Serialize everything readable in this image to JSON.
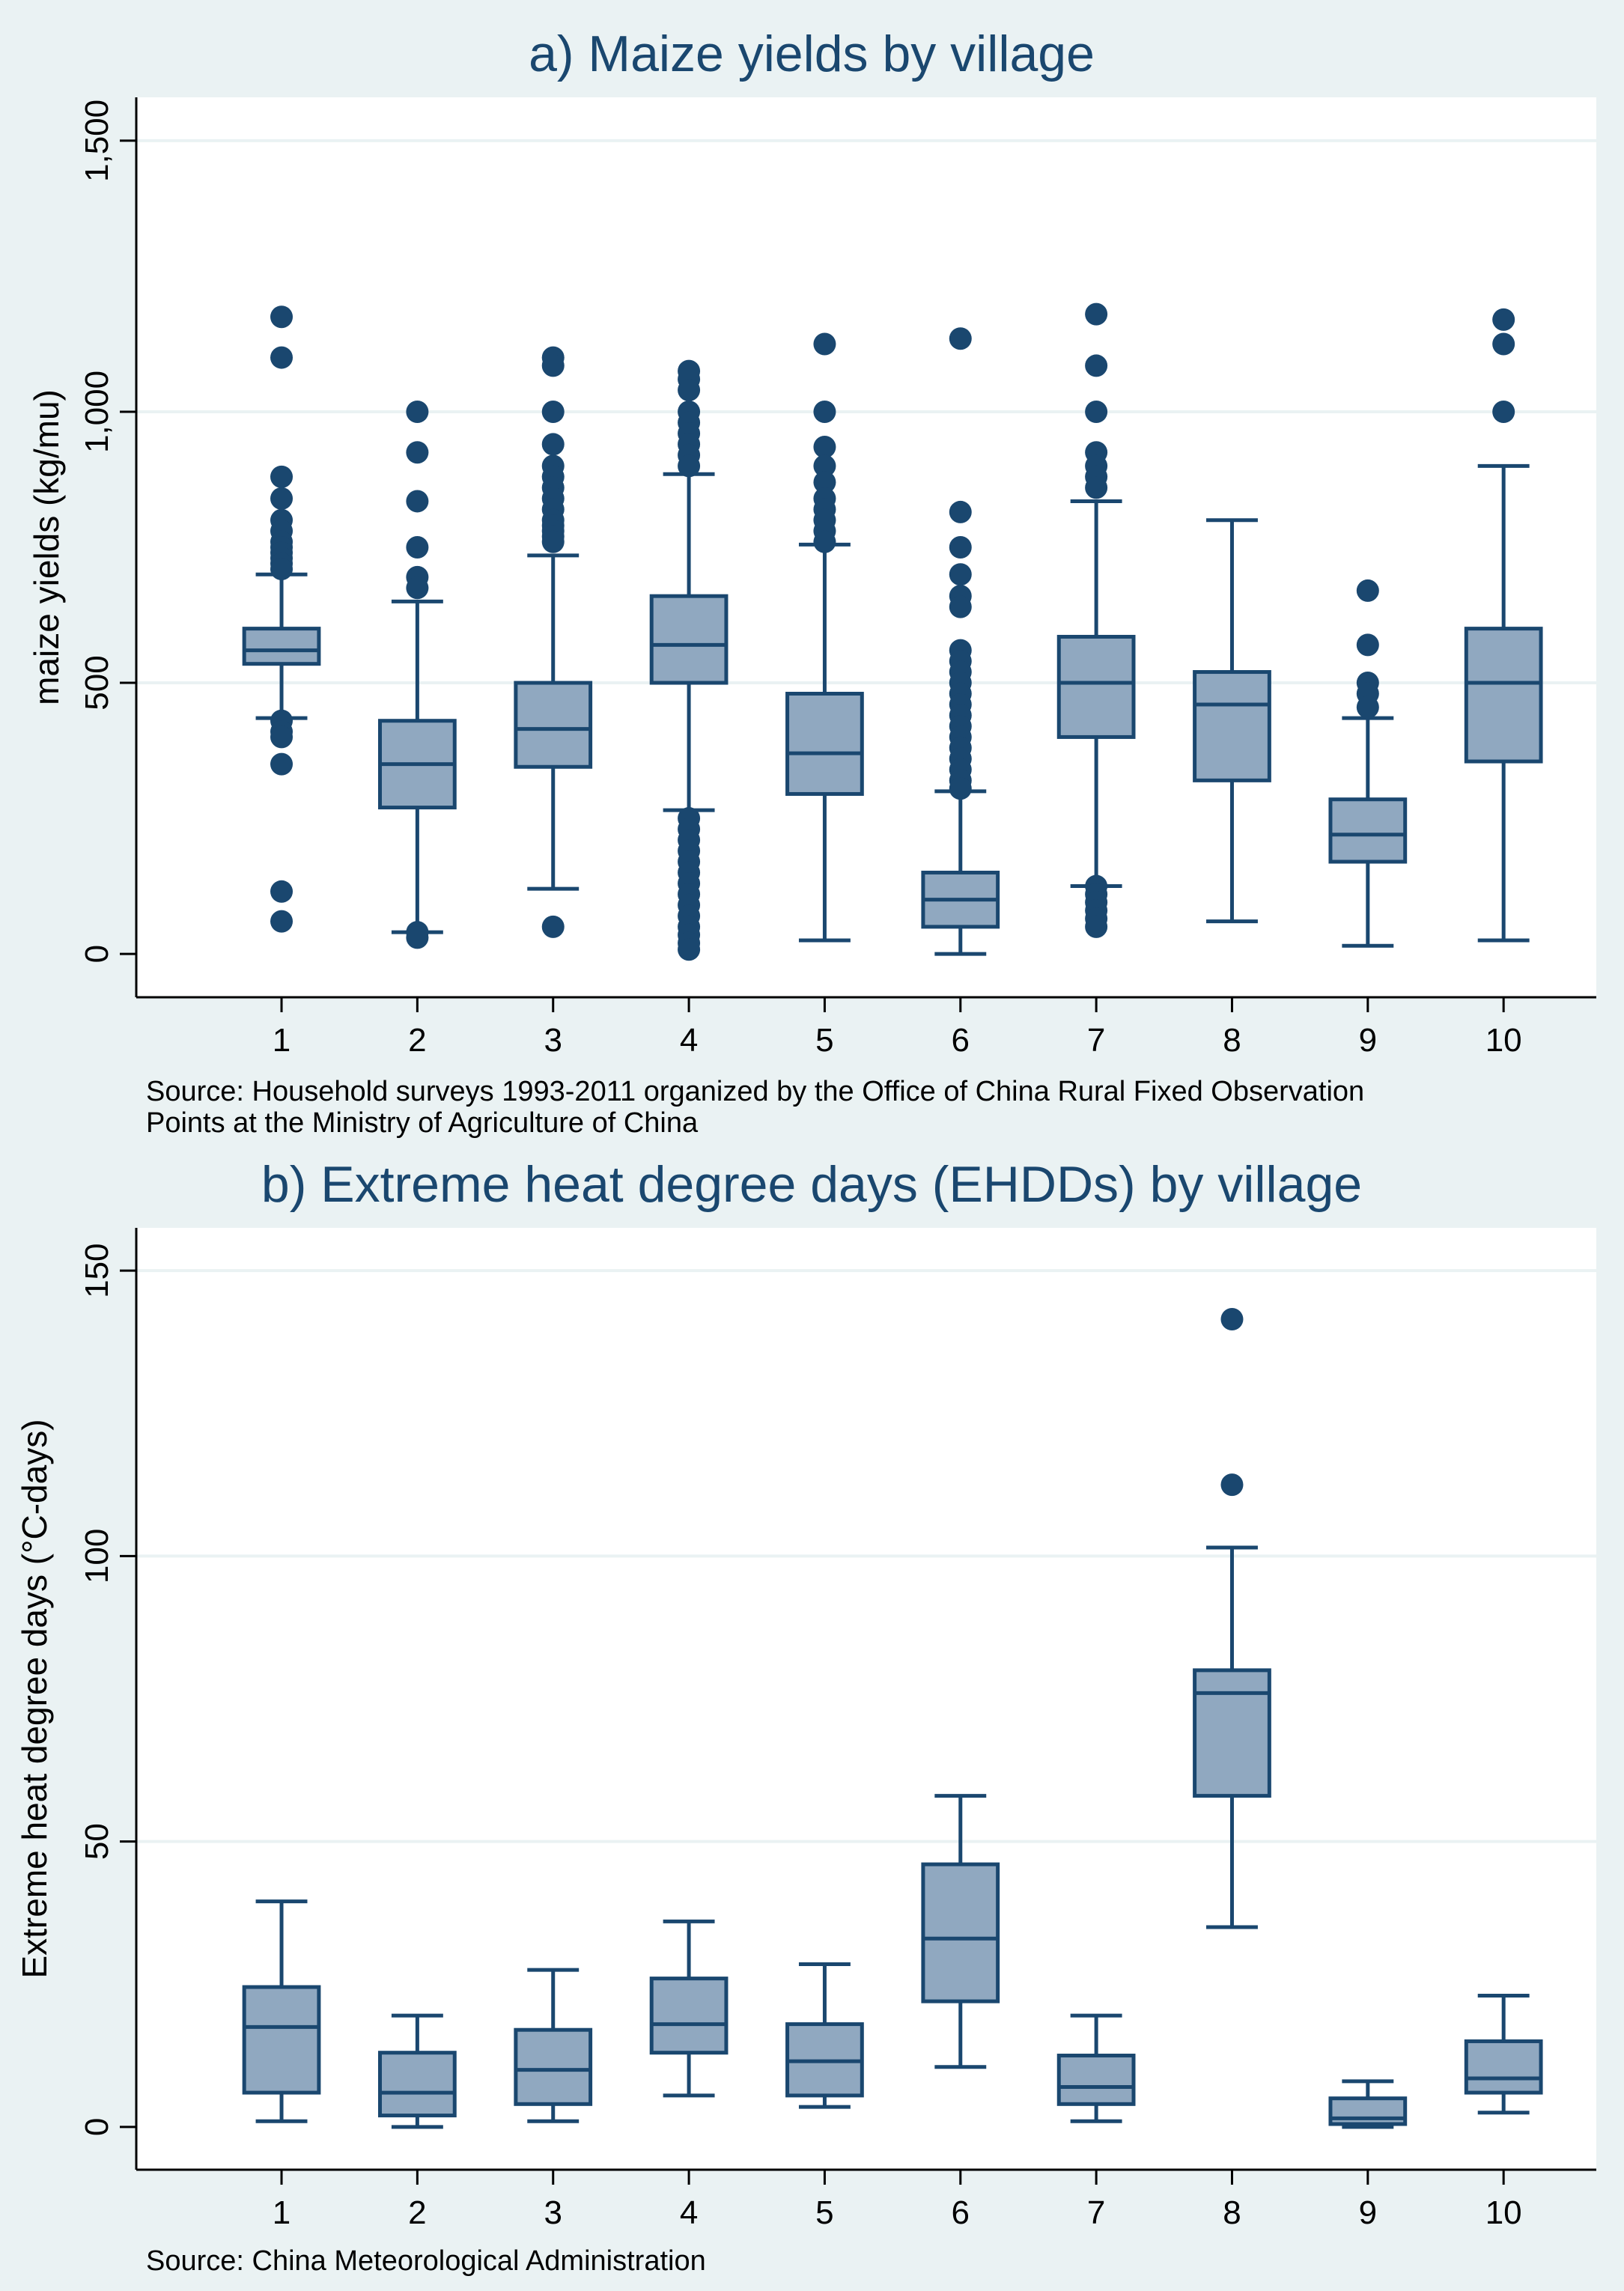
{
  "chart_data": [
    {
      "type": "box",
      "title": "a) Maize yields by village",
      "ylabel": "maize yields (kg/mu)",
      "xlabel": "",
      "ylim": [
        -80,
        1580
      ],
      "yticks": [
        0,
        500,
        1000,
        1500
      ],
      "ytick_labels": [
        "0",
        "500",
        "1,000",
        "1,500"
      ],
      "grid": true,
      "categories": [
        "1",
        "2",
        "3",
        "4",
        "5",
        "6",
        "7",
        "8",
        "9",
        "10"
      ],
      "note": "Source: Household surveys 1993-2011 organized by the Office of China Rural Fixed Observation Points at the Ministry of Agriculture of China",
      "note_lines": [
        "Source: Household surveys 1993-2011 organized by the Office of China Rural Fixed Observation",
        "Points at the Ministry of Agriculture of China"
      ],
      "boxes": [
        {
          "village": "1",
          "whisker_low": 435,
          "q1": 535,
          "median": 560,
          "q3": 600,
          "whisker_high": 700,
          "outliers": [
            1175,
            1100,
            880,
            840,
            800,
            780,
            760,
            750,
            740,
            730,
            720,
            710,
            430,
            410,
            400,
            350,
            115,
            60
          ]
        },
        {
          "village": "2",
          "whisker_low": 40,
          "q1": 270,
          "median": 350,
          "q3": 430,
          "whisker_high": 650,
          "outliers": [
            1000,
            925,
            835,
            750,
            695,
            675,
            40,
            30
          ]
        },
        {
          "village": "3",
          "whisker_low": 120,
          "q1": 345,
          "median": 415,
          "q3": 500,
          "whisker_high": 735,
          "outliers": [
            1100,
            1085,
            1000,
            940,
            900,
            880,
            860,
            840,
            820,
            800,
            790,
            780,
            770,
            760,
            50
          ]
        },
        {
          "village": "4",
          "whisker_low": 265,
          "q1": 500,
          "median": 570,
          "q3": 660,
          "whisker_high": 885,
          "outliers": [
            1075,
            1060,
            1040,
            1000,
            980,
            960,
            940,
            920,
            900,
            250,
            230,
            210,
            190,
            170,
            150,
            130,
            110,
            90,
            70,
            50,
            35,
            20,
            8
          ]
        },
        {
          "village": "5",
          "whisker_low": 25,
          "q1": 295,
          "median": 370,
          "q3": 480,
          "whisker_high": 755,
          "outliers": [
            1125,
            1000,
            935,
            900,
            870,
            840,
            820,
            800,
            780,
            760
          ]
        },
        {
          "village": "6",
          "whisker_low": 0,
          "q1": 50,
          "median": 100,
          "q3": 150,
          "whisker_high": 300,
          "outliers": [
            1135,
            815,
            750,
            700,
            660,
            640,
            560,
            540,
            520,
            500,
            480,
            460,
            440,
            420,
            400,
            380,
            360,
            340,
            320,
            305
          ]
        },
        {
          "village": "7",
          "whisker_low": 125,
          "q1": 400,
          "median": 500,
          "q3": 585,
          "whisker_high": 835,
          "outliers": [
            1180,
            1085,
            1000,
            925,
            900,
            880,
            860,
            125,
            110,
            95,
            80,
            65,
            50
          ]
        },
        {
          "village": "8",
          "whisker_low": 60,
          "q1": 320,
          "median": 460,
          "q3": 520,
          "whisker_high": 800,
          "outliers": []
        },
        {
          "village": "9",
          "whisker_low": 15,
          "q1": 170,
          "median": 220,
          "q3": 285,
          "whisker_high": 435,
          "outliers": [
            670,
            570,
            500,
            480,
            455
          ]
        },
        {
          "village": "10",
          "whisker_low": 25,
          "q1": 355,
          "median": 500,
          "q3": 600,
          "whisker_high": 900,
          "outliers": [
            1170,
            1125,
            1000
          ]
        }
      ]
    },
    {
      "type": "box",
      "title": "b) Extreme heat degree days (EHDDs) by village",
      "ylabel": "Extreme heat degree days (°C-days)",
      "xlabel": "",
      "ylim": [
        -7.5,
        157.5
      ],
      "yticks": [
        0,
        50,
        100,
        150
      ],
      "ytick_labels": [
        "0",
        "50",
        "100",
        "150"
      ],
      "grid": true,
      "categories": [
        "1",
        "2",
        "3",
        "4",
        "5",
        "6",
        "7",
        "8",
        "9",
        "10"
      ],
      "note": "Source: China Meteorological Administration",
      "note_lines": [
        "Source: China Meteorological Administration"
      ],
      "boxes": [
        {
          "village": "1",
          "whisker_low": 1,
          "q1": 6,
          "median": 17.5,
          "q3": 24.5,
          "whisker_high": 39.5,
          "outliers": []
        },
        {
          "village": "2",
          "whisker_low": 0,
          "q1": 2,
          "median": 6,
          "q3": 13,
          "whisker_high": 19.5,
          "outliers": []
        },
        {
          "village": "3",
          "whisker_low": 1,
          "q1": 4,
          "median": 10,
          "q3": 17,
          "whisker_high": 27.5,
          "outliers": []
        },
        {
          "village": "4",
          "whisker_low": 5.5,
          "q1": 13,
          "median": 18,
          "q3": 26,
          "whisker_high": 36,
          "outliers": []
        },
        {
          "village": "5",
          "whisker_low": 3.5,
          "q1": 5.5,
          "median": 11.5,
          "q3": 18,
          "whisker_high": 28.5,
          "outliers": []
        },
        {
          "village": "6",
          "whisker_low": 10.5,
          "q1": 22,
          "median": 33,
          "q3": 46,
          "whisker_high": 58,
          "outliers": []
        },
        {
          "village": "7",
          "whisker_low": 1,
          "q1": 4,
          "median": 7,
          "q3": 12.5,
          "whisker_high": 19.5,
          "outliers": []
        },
        {
          "village": "8",
          "whisker_low": 35,
          "q1": 58,
          "median": 76,
          "q3": 80,
          "whisker_high": 101.5,
          "outliers": [
            141.5,
            112.5
          ]
        },
        {
          "village": "9",
          "whisker_low": 0,
          "q1": 0.5,
          "median": 1.5,
          "q3": 5,
          "whisker_high": 8,
          "outliers": []
        },
        {
          "village": "10",
          "whisker_low": 2.5,
          "q1": 6,
          "median": 8.5,
          "q3": 15,
          "whisker_high": 23,
          "outliers": []
        }
      ]
    }
  ]
}
